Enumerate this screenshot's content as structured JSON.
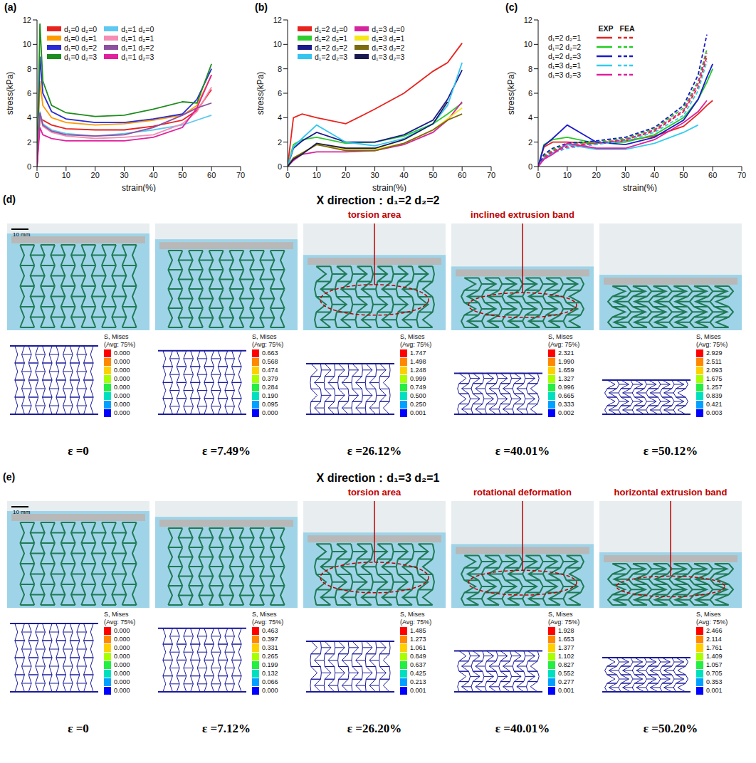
{
  "chart_data": [
    {
      "type": "line",
      "title": "(a)",
      "x_label": "strain(%)",
      "y_label": "stress(kPa)",
      "legend": "upper left",
      "x": [
        0,
        1,
        2,
        5,
        10,
        20,
        30,
        40,
        50,
        55,
        60
      ],
      "xlim": [
        0,
        70
      ],
      "xticks": [
        0,
        10,
        20,
        30,
        40,
        50,
        60,
        70
      ],
      "ylim": [
        0,
        12
      ],
      "yticks": [
        0,
        2,
        4,
        6,
        8,
        10,
        12
      ],
      "series": [
        {
          "name": "d₁=0  d₂=0",
          "color": "#e8231e",
          "values": [
            0,
            4.0,
            3.8,
            3.4,
            3.1,
            3.0,
            3.0,
            3.3,
            3.8,
            4.6,
            6.3
          ]
        },
        {
          "name": "d₁=0  d₂=1",
          "color": "#ff9900",
          "values": [
            0,
            7.0,
            5.0,
            4.0,
            3.6,
            3.4,
            3.5,
            3.8,
            4.2,
            5.0,
            7.5
          ]
        },
        {
          "name": "d₁=0  d₂=2",
          "color": "#2b2bd6",
          "values": [
            0,
            9.0,
            6.0,
            4.5,
            3.9,
            3.6,
            3.6,
            3.9,
            4.3,
            5.5,
            8.0
          ]
        },
        {
          "name": "d₁=0  d₂=3",
          "color": "#1e8c1e",
          "values": [
            0,
            11.7,
            7.0,
            5.0,
            4.4,
            4.1,
            4.2,
            4.7,
            5.3,
            5.2,
            8.4
          ]
        },
        {
          "name": "d₁=1  d₂=0",
          "color": "#5ec8f0",
          "values": [
            0,
            4.5,
            3.5,
            3.0,
            2.7,
            2.5,
            2.7,
            3.0,
            3.4,
            3.8,
            4.2
          ]
        },
        {
          "name": "d₁=1  d₂=1",
          "color": "#f58cb4",
          "values": [
            0,
            4.3,
            3.3,
            2.8,
            2.5,
            2.3,
            2.4,
            2.6,
            3.5,
            4.5,
            6.5
          ]
        },
        {
          "name": "d₁=1  d₂=2",
          "color": "#8e4fa0",
          "values": [
            0,
            4.4,
            3.4,
            2.9,
            2.6,
            2.5,
            2.6,
            3.2,
            4.2,
            4.8,
            5.2
          ]
        },
        {
          "name": "d₁=1  d₂=3",
          "color": "#e0209c",
          "values": [
            0,
            3.2,
            2.6,
            2.3,
            2.1,
            2.1,
            2.1,
            2.4,
            3.2,
            4.8,
            7.5
          ]
        }
      ]
    },
    {
      "type": "line",
      "title": "(b)",
      "x_label": "strain(%)",
      "y_label": "stress(kPa)",
      "legend": "upper left",
      "x": [
        0,
        2,
        5,
        10,
        20,
        30,
        40,
        50,
        55,
        60
      ],
      "xlim": [
        0,
        70
      ],
      "xticks": [
        0,
        10,
        20,
        30,
        40,
        50,
        60,
        70
      ],
      "ylim": [
        0,
        12
      ],
      "yticks": [
        0,
        2,
        4,
        6,
        8,
        10,
        12
      ],
      "series": [
        {
          "name": "d₁=2  d₂=0",
          "color": "#e8231e",
          "values": [
            0,
            4.0,
            4.3,
            4.0,
            3.5,
            4.7,
            6.0,
            7.8,
            8.5,
            10.1
          ]
        },
        {
          "name": "d₁=2  d₂=1",
          "color": "#2ecc2e",
          "values": [
            0,
            1.8,
            2.2,
            2.4,
            1.9,
            2.0,
            2.5,
            3.5,
            4.3,
            5.2
          ]
        },
        {
          "name": "d₁=2  d₂=2",
          "color": "#1a1a8c",
          "values": [
            0,
            1.5,
            2.1,
            2.8,
            2.0,
            2.0,
            2.6,
            3.8,
            5.5,
            7.9
          ]
        },
        {
          "name": "d₁=2  d₂=3",
          "color": "#33c6f0",
          "values": [
            0,
            1.6,
            2.3,
            3.4,
            2.0,
            1.7,
            2.3,
            3.5,
            5.0,
            8.5
          ]
        },
        {
          "name": "d₁=3  d₂=0",
          "color": "#d6249f",
          "values": [
            0,
            0.5,
            1.0,
            1.2,
            1.2,
            1.3,
            1.8,
            2.8,
            3.8,
            5.3
          ]
        },
        {
          "name": "d₁=3  d₂=1",
          "color": "#f5e61a",
          "values": [
            0,
            0.7,
            1.1,
            1.8,
            1.4,
            1.4,
            1.9,
            3.0,
            3.9,
            4.8
          ]
        },
        {
          "name": "d₁=3  d₂=2",
          "color": "#7a6a10",
          "values": [
            0,
            0.7,
            1.1,
            1.8,
            1.3,
            1.3,
            1.9,
            3.0,
            3.8,
            4.3
          ]
        },
        {
          "name": "d₁=3  d₂=3",
          "color": "#1a1a50",
          "values": [
            0,
            0.6,
            1.0,
            1.9,
            1.5,
            1.5,
            2.2,
            3.5,
            5.3,
            null
          ]
        }
      ]
    },
    {
      "type": "line",
      "title": "(c)",
      "x_label": "strain(%)",
      "y_label": "stress(kPa)",
      "legend": "upper left",
      "x": [
        0,
        2,
        5,
        10,
        20,
        30,
        40,
        50,
        55,
        58,
        60
      ],
      "xlim": [
        0,
        70
      ],
      "xticks": [
        0,
        10,
        20,
        30,
        40,
        50,
        60,
        70
      ],
      "ylim": [
        0,
        12
      ],
      "yticks": [
        0,
        2,
        4,
        6,
        8,
        10,
        12
      ],
      "series": [
        {
          "name": "d₁=2  d₂=1",
          "color": "#e8231e",
          "curves": [
            {
              "name": "EXP",
              "line_style": "solid",
              "values": [
                0,
                1.6,
                2.0,
                2.0,
                1.9,
                2.1,
                2.5,
                3.3,
                4.3,
                5.0,
                5.4
              ]
            },
            {
              "name": "FEA",
              "line_style": "dashed",
              "values": [
                0,
                0.8,
                1.3,
                1.7,
                1.9,
                2.2,
                2.9,
                4.5,
                6.5,
                9.0,
                null
              ]
            }
          ]
        },
        {
          "name": "d₁=2  d₂=2",
          "color": "#22cc22",
          "curves": [
            {
              "name": "EXP",
              "line_style": "solid",
              "values": [
                0,
                1.8,
                2.2,
                2.4,
                1.9,
                2.0,
                2.6,
                4.0,
                5.5,
                6.9,
                8.0
              ]
            },
            {
              "name": "FEA",
              "line_style": "dashed",
              "values": [
                0,
                0.9,
                1.4,
                1.8,
                2.0,
                2.3,
                3.1,
                4.8,
                7.0,
                9.6,
                null
              ]
            }
          ]
        },
        {
          "name": "d₁=2  d₂=3",
          "color": "#1a1acc",
          "curves": [
            {
              "name": "EXP",
              "line_style": "solid",
              "values": [
                0,
                1.7,
                2.3,
                3.4,
                2.0,
                1.8,
                2.4,
                3.8,
                5.5,
                7.3,
                8.4
              ]
            },
            {
              "name": "FEA",
              "line_style": "dashed",
              "values": [
                0,
                1.0,
                1.5,
                1.9,
                2.1,
                2.4,
                3.2,
                5.0,
                7.5,
                10.8,
                null
              ]
            }
          ]
        },
        {
          "name": "d₁=3  d₂=1",
          "color": "#33ccee",
          "curves": [
            {
              "name": "EXP",
              "line_style": "solid",
              "values": [
                0,
                0.7,
                1.1,
                1.8,
                1.4,
                1.4,
                1.9,
                2.8,
                3.4,
                null,
                null
              ]
            },
            {
              "name": "FEA",
              "line_style": "dashed",
              "values": [
                0,
                0.6,
                1.1,
                1.5,
                1.8,
                2.1,
                2.8,
                4.2,
                6.2,
                8.6,
                null
              ]
            }
          ]
        },
        {
          "name": "d₁=3  d₂=3",
          "color": "#e0209c",
          "curves": [
            {
              "name": "EXP",
              "line_style": "solid",
              "values": [
                0,
                0.6,
                1.0,
                1.9,
                1.5,
                1.5,
                2.2,
                3.6,
                4.5,
                5.4,
                null
              ]
            },
            {
              "name": "FEA",
              "line_style": "dashed",
              "values": [
                0,
                0.7,
                1.2,
                1.6,
                1.9,
                2.2,
                3.0,
                4.6,
                6.8,
                9.3,
                null
              ]
            }
          ]
        }
      ]
    }
  ],
  "figures": [
    {
      "label": "(d)",
      "title": "X direction：d₁=2   d₂=2",
      "scale_bar": "10 mm",
      "colorbar_title": [
        "S, Mises",
        "(Avg: 75%)"
      ],
      "frames": [
        {
          "strain": "ε =0",
          "colorbar_labels": [
            "0.000",
            "0.000",
            "0.000",
            "0.000",
            "0.000",
            "0.000",
            "0.000",
            "0.000"
          ]
        },
        {
          "strain": "ε =7.49%",
          "colorbar_labels": [
            "0.663",
            "0.568",
            "0.474",
            "0.379",
            "0.284",
            "0.190",
            "0.095",
            "0.000"
          ]
        },
        {
          "strain": "ε =26.12%",
          "annotation": "torsion area",
          "colorbar_labels": [
            "1.747",
            "1.498",
            "1.248",
            "0.999",
            "0.749",
            "0.500",
            "0.250",
            "0.001"
          ]
        },
        {
          "strain": "ε =40.01%",
          "annotation": "inclined extrusion band",
          "colorbar_labels": [
            "2.321",
            "1.990",
            "1.659",
            "1.327",
            "0.996",
            "0.665",
            "0.333",
            "0.002"
          ]
        },
        {
          "strain": "ε =50.12%",
          "colorbar_labels": [
            "2.929",
            "2.511",
            "2.093",
            "1.675",
            "1.257",
            "0.839",
            "0.421",
            "0.003"
          ]
        }
      ]
    },
    {
      "label": "(e)",
      "title": "X direction：d₁=3   d₂=1",
      "scale_bar": "10 mm",
      "colorbar_title": [
        "S, Mises",
        "(Avg: 75%)"
      ],
      "frames": [
        {
          "strain": "ε =0",
          "colorbar_labels": [
            "0.000",
            "0.000",
            "0.000",
            "0.000",
            "0.000",
            "0.000",
            "0.000",
            "0.000"
          ]
        },
        {
          "strain": "ε =7.12%",
          "colorbar_labels": [
            "0.463",
            "0.397",
            "0.331",
            "0.265",
            "0.199",
            "0.132",
            "0.066",
            "0.000"
          ]
        },
        {
          "strain": "ε =26.20%",
          "annotation": "torsion area",
          "colorbar_labels": [
            "1.485",
            "1.273",
            "1.061",
            "0.849",
            "0.637",
            "0.425",
            "0.213",
            "0.001"
          ]
        },
        {
          "strain": "ε =40.01%",
          "annotation": "rotational deformation",
          "colorbar_labels": [
            "1.928",
            "1.653",
            "1.377",
            "1.102",
            "0.827",
            "0.552",
            "0.277",
            "0.001"
          ]
        },
        {
          "strain": "ε =50.20%",
          "annotation": "horizontal extrusion band",
          "colorbar_labels": [
            "2.466",
            "2.114",
            "1.761",
            "1.409",
            "1.057",
            "0.705",
            "0.353",
            "0.001"
          ]
        }
      ]
    }
  ]
}
